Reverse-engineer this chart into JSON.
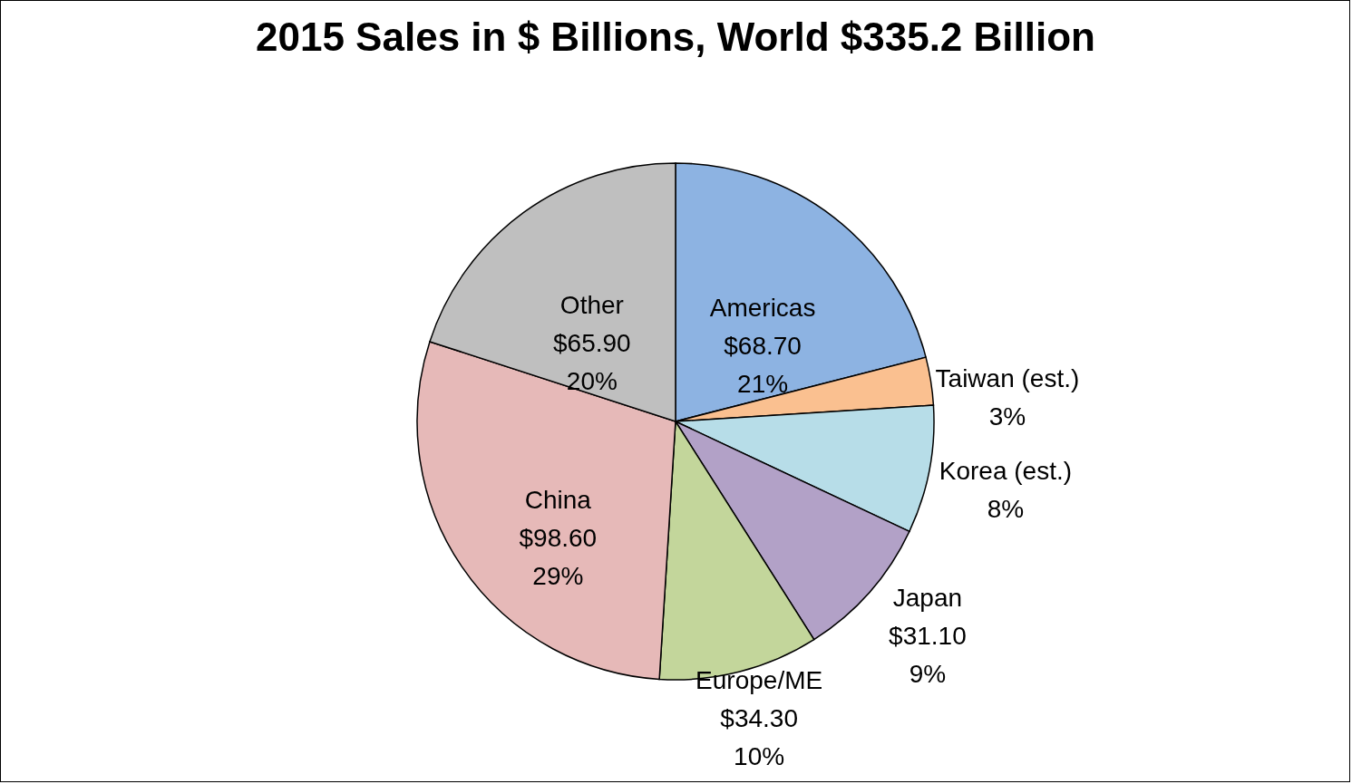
{
  "chart_data": {
    "type": "pie",
    "title": "2015 Sales in $ Billions, World $335.2 Billion",
    "categories": [
      "Americas",
      "Taiwan (est.)",
      "Korea (est.)",
      "Japan",
      "Europe/ME",
      "China",
      "Other"
    ],
    "values": [
      21,
      3,
      8,
      9,
      10,
      29,
      20
    ],
    "colors": [
      "#8db3e2",
      "#fac090",
      "#b7dde8",
      "#b2a1c7",
      "#c3d69b",
      "#e6b9b8",
      "#bfbfbf"
    ],
    "value_labels": [
      "$68.70\n21%",
      "3%",
      "8%",
      "$31.10\n9%",
      "$34.30\n10%",
      "$98.60\n29%",
      "$65.90\n20%"
    ]
  }
}
